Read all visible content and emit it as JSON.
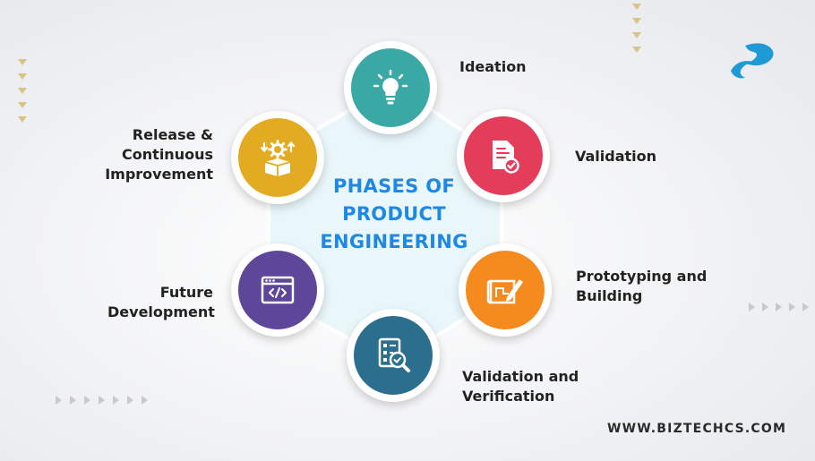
{
  "title": {
    "line1": "PHASES OF",
    "line2": "PRODUCT",
    "line3": "ENGINEERING"
  },
  "phases": [
    {
      "label_lines": [
        "Ideation"
      ],
      "color": "#3aa9a5",
      "icon": "lightbulb-icon"
    },
    {
      "label_lines": [
        "Validation"
      ],
      "color": "#e43d5a",
      "icon": "document-check-icon"
    },
    {
      "label_lines": [
        "Prototyping and",
        "Building"
      ],
      "color": "#f58a1f",
      "icon": "blueprint-pencil-icon"
    },
    {
      "label_lines": [
        "Validation and",
        "Verification"
      ],
      "color": "#2c6e8e",
      "icon": "checklist-magnifier-icon"
    },
    {
      "label_lines": [
        "Future",
        "Development"
      ],
      "color": "#5e4699",
      "icon": "code-window-icon"
    },
    {
      "label_lines": [
        "Release &",
        "Continuous",
        "Improvement"
      ],
      "color": "#e3ab22",
      "icon": "box-gear-icon"
    }
  ],
  "website": "WWW.BIZTECHCS.COM",
  "colors": {
    "title": "#1e88e5",
    "hexagon_fill": "#e9f7fb",
    "decor_arrows": "#c9c9c9"
  }
}
